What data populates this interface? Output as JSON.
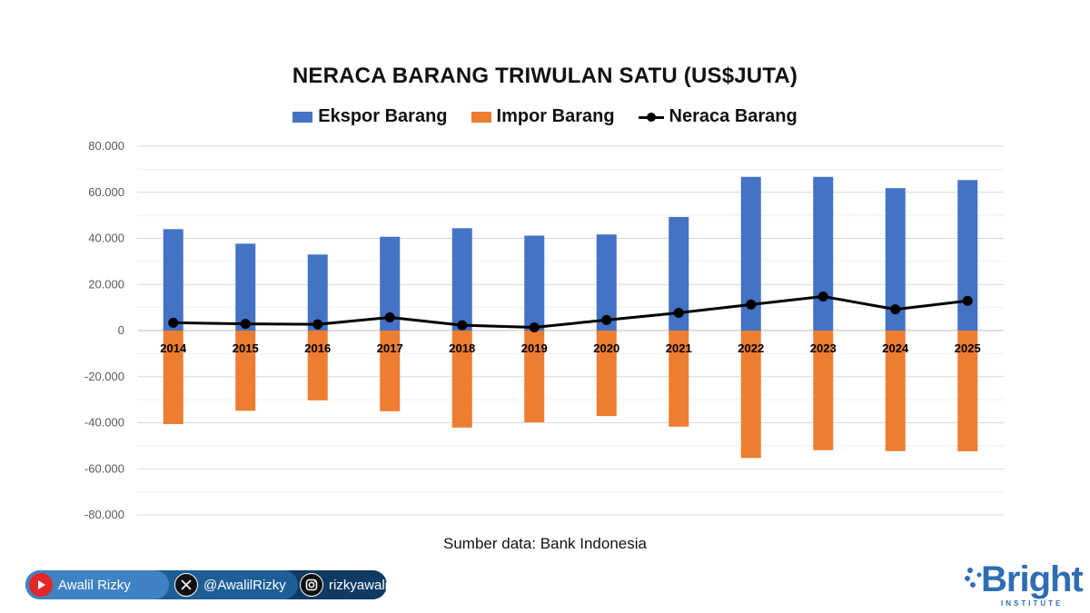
{
  "chart_data": {
    "type": "bar",
    "title": "NERACA BARANG TRIWULAN SATU (US$JUTA)",
    "categories": [
      "2014",
      "2015",
      "2016",
      "2017",
      "2018",
      "2019",
      "2020",
      "2021",
      "2022",
      "2023",
      "2024",
      "2025"
    ],
    "series": [
      {
        "name": "Ekspor Barang",
        "type": "bar",
        "color": "#4472c4",
        "values": [
          44000,
          37700,
          33000,
          40700,
          44400,
          41200,
          41700,
          49300,
          66700,
          66700,
          61800,
          65300
        ]
      },
      {
        "name": "Impor Barang",
        "type": "bar",
        "color": "#ed7d31",
        "values": [
          -40600,
          -34800,
          -30300,
          -35000,
          -42100,
          -39800,
          -37100,
          -41700,
          -55300,
          -51900,
          -52300,
          -52400
        ]
      },
      {
        "name": "Neraca Barang",
        "type": "line",
        "color": "#000000",
        "values": [
          3400,
          2900,
          2700,
          5700,
          2300,
          1400,
          4600,
          7700,
          11300,
          14800,
          9200,
          12900
        ]
      }
    ],
    "ylim": [
      -80000,
      80000
    ],
    "yticks": [
      80000,
      60000,
      40000,
      20000,
      0,
      -20000,
      -40000,
      -60000,
      -80000
    ],
    "ytick_labels": [
      "80.000",
      "60.000",
      "40.000",
      "20.000",
      "0",
      "-20.000",
      "-40.000",
      "-60.000",
      "-80.000"
    ],
    "legend": "top",
    "grid": true
  },
  "source": "Sumber data: Bank Indonesia",
  "social": {
    "youtube": "Awalil Rizky",
    "x": "@AwalilRizky",
    "instagram": "rizkyawalil"
  },
  "brand": {
    "name": "Bright",
    "sub": "INSTITUTE"
  }
}
